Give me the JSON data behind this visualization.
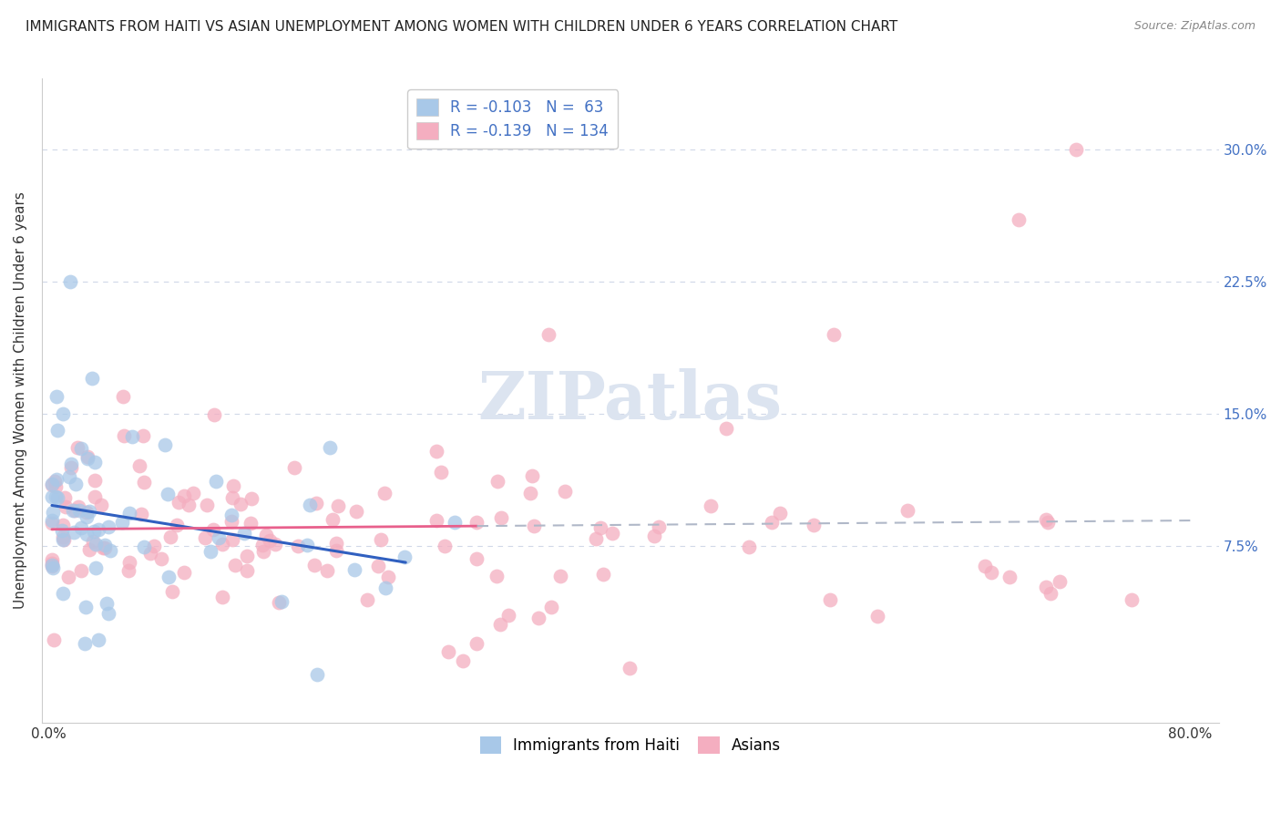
{
  "title": "IMMIGRANTS FROM HAITI VS ASIAN UNEMPLOYMENT AMONG WOMEN WITH CHILDREN UNDER 6 YEARS CORRELATION CHART",
  "source": "Source: ZipAtlas.com",
  "ylabel": "Unemployment Among Women with Children Under 6 years",
  "ytick_labels": [
    "7.5%",
    "15.0%",
    "22.5%",
    "30.0%"
  ],
  "ytick_values": [
    0.075,
    0.15,
    0.225,
    0.3
  ],
  "xlim": [
    -0.005,
    0.82
  ],
  "ylim": [
    -0.025,
    0.34
  ],
  "legend_r_haiti": "-0.103",
  "legend_n_haiti": "63",
  "legend_r_asian": "-0.139",
  "legend_n_asian": "134",
  "color_haiti": "#a8c8e8",
  "color_asian": "#f4aec0",
  "line_color_haiti": "#3060c0",
  "line_color_asian": "#e8608c",
  "line_color_gray": "#b0b8c8",
  "background_color": "#ffffff",
  "grid_color": "#d0d8e8",
  "watermark_color": "#dce4f0",
  "title_fontsize": 11,
  "source_fontsize": 9,
  "ylabel_fontsize": 11,
  "tick_fontsize": 11,
  "legend_fontsize": 12,
  "scatter_size": 130,
  "scatter_alpha": 0.75
}
